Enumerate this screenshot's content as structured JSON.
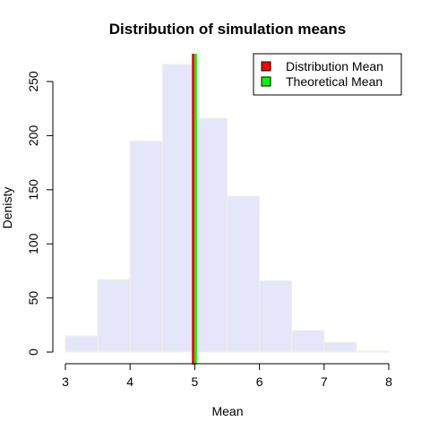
{
  "chart_data": {
    "type": "bar",
    "title": "Distribution of simulation means",
    "xlabel": "Mean",
    "ylabel": "Denisty",
    "bins": [
      {
        "start": 3.0,
        "end": 3.5,
        "value": 15
      },
      {
        "start": 3.5,
        "end": 4.0,
        "value": 67
      },
      {
        "start": 4.0,
        "end": 4.5,
        "value": 195
      },
      {
        "start": 4.5,
        "end": 5.0,
        "value": 266
      },
      {
        "start": 5.0,
        "end": 5.5,
        "value": 216
      },
      {
        "start": 5.5,
        "end": 6.0,
        "value": 144
      },
      {
        "start": 6.0,
        "end": 6.5,
        "value": 66
      },
      {
        "start": 6.5,
        "end": 7.0,
        "value": 20
      },
      {
        "start": 7.0,
        "end": 7.5,
        "value": 9
      },
      {
        "start": 7.5,
        "end": 8.0,
        "value": 1
      }
    ],
    "xlim": [
      3,
      8
    ],
    "ylim": [
      0,
      275
    ],
    "x_ticks": [
      "3",
      "4",
      "5",
      "6",
      "7",
      "8"
    ],
    "y_ticks": [
      "0",
      "50",
      "100",
      "150",
      "200",
      "250"
    ],
    "bar_fill": "#e6e6fa",
    "bar_border": "#f5f0e0",
    "vlines": [
      {
        "name": "Distribution Mean",
        "x": 4.99,
        "color": "#ff0000"
      },
      {
        "name": "Theoretical Mean",
        "x": 5.0,
        "color": "#00ff00"
      }
    ],
    "legend": {
      "position": "top-right",
      "entries": [
        {
          "label": "Distribution Mean",
          "color": "#ff0000"
        },
        {
          "label": "Theoretical Mean",
          "color": "#00ff00"
        }
      ]
    },
    "grid": false
  }
}
